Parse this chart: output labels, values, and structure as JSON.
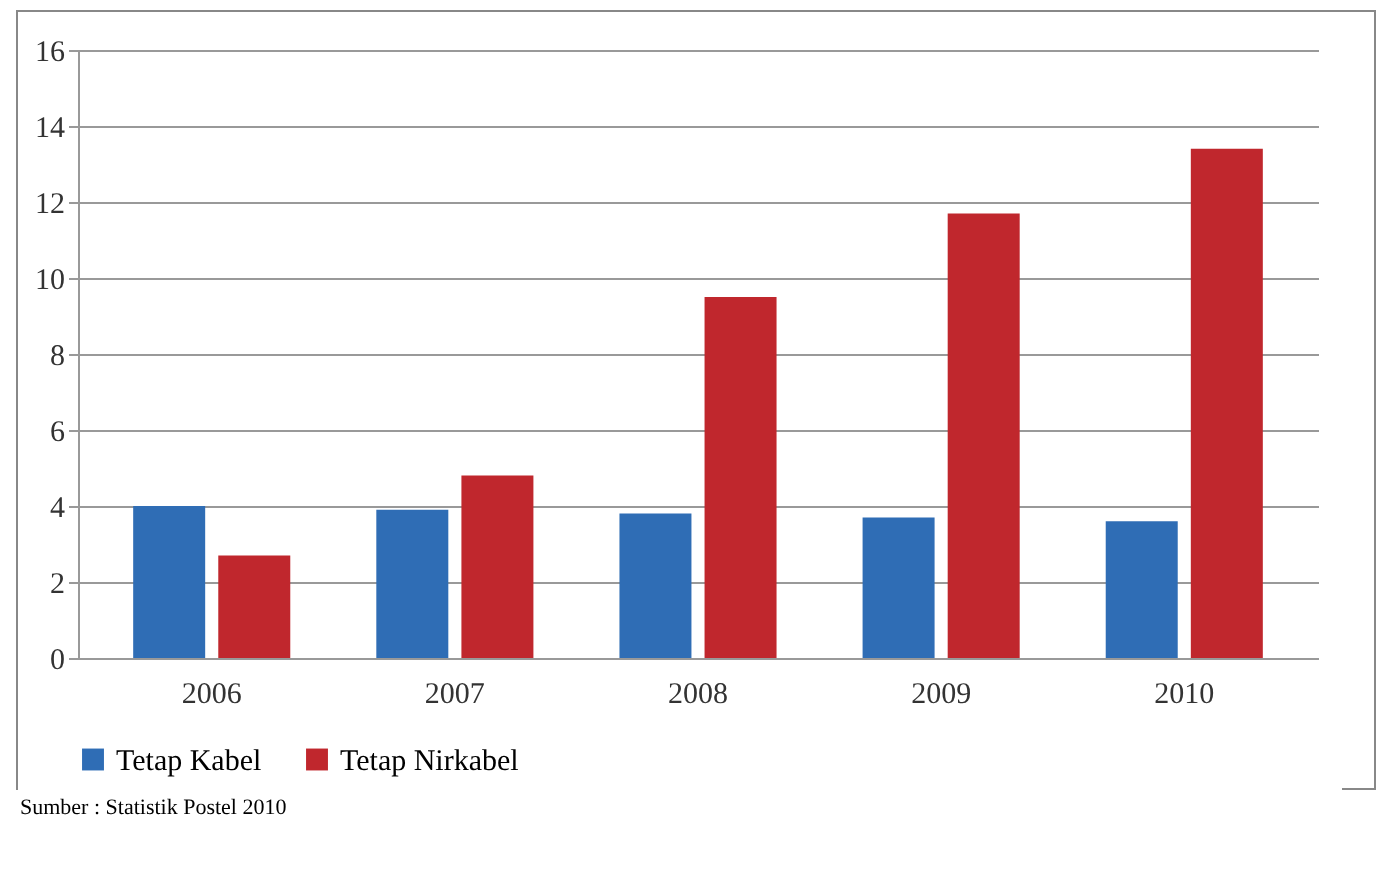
{
  "chart_data": {
    "type": "bar",
    "categories": [
      "2006",
      "2007",
      "2008",
      "2009",
      "2010"
    ],
    "series": [
      {
        "name": "Tetap Kabel",
        "color": "#2f6db5",
        "values": [
          4.0,
          3.9,
          3.8,
          3.7,
          3.6
        ]
      },
      {
        "name": "Tetap Nirkabel",
        "color": "#c0272d",
        "values": [
          2.7,
          4.8,
          9.5,
          11.7,
          13.4
        ]
      }
    ],
    "ylim": [
      0,
      16
    ],
    "yticks": [
      0,
      2,
      4,
      6,
      8,
      10,
      12,
      14,
      16
    ],
    "grid": "y",
    "legend": "bottom",
    "annotations": [
      "Sumber : Statistik Postel 2010"
    ]
  }
}
